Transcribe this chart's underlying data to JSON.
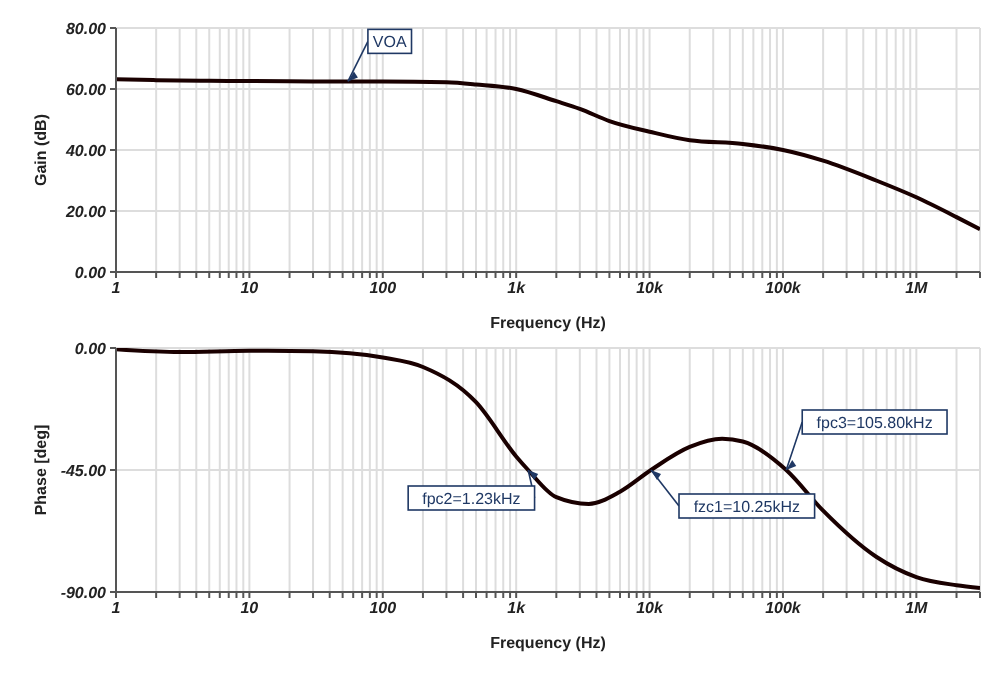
{
  "chart_data": [
    {
      "type": "line",
      "xlabel": "Frequency (Hz)",
      "ylabel": "Gain (dB)",
      "log": "x",
      "grid": true,
      "x": [
        1,
        2,
        5,
        10,
        30,
        100,
        300,
        500,
        1000,
        2000,
        3000,
        5000,
        10000,
        20000,
        50000,
        100000,
        200000,
        500000,
        1000000,
        2000000,
        3000000
      ],
      "series": [
        {
          "name": "VOA",
          "color": "#1a0000",
          "values": [
            63.2,
            62.9,
            62.7,
            62.6,
            62.5,
            62.5,
            62.2,
            61.5,
            60,
            56,
            53.5,
            49.5,
            46,
            43.2,
            42,
            40,
            36.5,
            30,
            24.5,
            18,
            14
          ]
        }
      ],
      "xlim": [
        1,
        3000000
      ],
      "xticks": [
        {
          "value": 1,
          "label": "1"
        },
        {
          "value": 2,
          "label": null
        },
        {
          "value": 3,
          "label": null
        },
        {
          "value": 4,
          "label": null
        },
        {
          "value": 5,
          "label": null
        },
        {
          "value": 6,
          "label": null
        },
        {
          "value": 7,
          "label": null
        },
        {
          "value": 8,
          "label": null
        },
        {
          "value": 9,
          "label": null
        },
        {
          "value": 10,
          "label": "10"
        },
        {
          "value": 20,
          "label": null
        },
        {
          "value": 30,
          "label": null
        },
        {
          "value": 40,
          "label": null
        },
        {
          "value": 50,
          "label": null
        },
        {
          "value": 60,
          "label": null
        },
        {
          "value": 70,
          "label": null
        },
        {
          "value": 80,
          "label": null
        },
        {
          "value": 90,
          "label": null
        },
        {
          "value": 100,
          "label": "100"
        },
        {
          "value": 200,
          "label": null
        },
        {
          "value": 300,
          "label": null
        },
        {
          "value": 400,
          "label": null
        },
        {
          "value": 500,
          "label": null
        },
        {
          "value": 600,
          "label": null
        },
        {
          "value": 700,
          "label": null
        },
        {
          "value": 800,
          "label": null
        },
        {
          "value": 900,
          "label": null
        },
        {
          "value": 1000,
          "label": "1k"
        },
        {
          "value": 2000,
          "label": null
        },
        {
          "value": 3000,
          "label": null
        },
        {
          "value": 4000,
          "label": null
        },
        {
          "value": 5000,
          "label": null
        },
        {
          "value": 6000,
          "label": null
        },
        {
          "value": 7000,
          "label": null
        },
        {
          "value": 8000,
          "label": null
        },
        {
          "value": 9000,
          "label": null
        },
        {
          "value": 10000,
          "label": "10k"
        },
        {
          "value": 20000,
          "label": null
        },
        {
          "value": 30000,
          "label": null
        },
        {
          "value": 40000,
          "label": null
        },
        {
          "value": 50000,
          "label": null
        },
        {
          "value": 60000,
          "label": null
        },
        {
          "value": 70000,
          "label": null
        },
        {
          "value": 80000,
          "label": null
        },
        {
          "value": 90000,
          "label": null
        },
        {
          "value": 100000,
          "label": "100k"
        },
        {
          "value": 200000,
          "label": null
        },
        {
          "value": 300000,
          "label": null
        },
        {
          "value": 400000,
          "label": null
        },
        {
          "value": 500000,
          "label": null
        },
        {
          "value": 600000,
          "label": null
        },
        {
          "value": 700000,
          "label": null
        },
        {
          "value": 800000,
          "label": null
        },
        {
          "value": 900000,
          "label": null
        },
        {
          "value": 1000000,
          "label": "1M"
        },
        {
          "value": 2000000,
          "label": null
        },
        {
          "value": 3000000,
          "label": null
        }
      ],
      "ylim": [
        0,
        80
      ],
      "yticks": [
        {
          "value": 0,
          "label": "0.00"
        },
        {
          "value": 20,
          "label": "20.00"
        },
        {
          "value": 40,
          "label": "40.00"
        },
        {
          "value": 60,
          "label": "60.00"
        },
        {
          "value": 80,
          "label": "80.00"
        }
      ]
    },
    {
      "type": "line",
      "xlabel": "Frequency (Hz)",
      "ylabel": "Phase [deg]",
      "log": "x",
      "grid": true,
      "x": [
        1,
        3,
        10,
        30,
        100,
        200,
        500,
        1000,
        1230,
        2000,
        3500,
        6000,
        10250,
        20000,
        35000,
        50000,
        105800,
        200000,
        500000,
        1000000,
        2000000,
        3000000
      ],
      "color": "#1a0000",
      "values": [
        -0.5,
        -1.5,
        -1,
        -1.2,
        -3.5,
        -7,
        -20,
        -40,
        -45,
        -55,
        -57.5,
        -53,
        -45,
        -36.5,
        -33.5,
        -34.5,
        -45,
        -60,
        -77,
        -84.5,
        -87.5,
        -88.5
      ],
      "xlim": [
        1,
        3000000
      ],
      "xticks": [
        {
          "value": 1,
          "label": "1"
        },
        {
          "value": 2,
          "label": null
        },
        {
          "value": 3,
          "label": null
        },
        {
          "value": 4,
          "label": null
        },
        {
          "value": 5,
          "label": null
        },
        {
          "value": 6,
          "label": null
        },
        {
          "value": 7,
          "label": null
        },
        {
          "value": 8,
          "label": null
        },
        {
          "value": 9,
          "label": null
        },
        {
          "value": 10,
          "label": "10"
        },
        {
          "value": 20,
          "label": null
        },
        {
          "value": 30,
          "label": null
        },
        {
          "value": 40,
          "label": null
        },
        {
          "value": 50,
          "label": null
        },
        {
          "value": 60,
          "label": null
        },
        {
          "value": 70,
          "label": null
        },
        {
          "value": 80,
          "label": null
        },
        {
          "value": 90,
          "label": null
        },
        {
          "value": 100,
          "label": "100"
        },
        {
          "value": 200,
          "label": null
        },
        {
          "value": 300,
          "label": null
        },
        {
          "value": 400,
          "label": null
        },
        {
          "value": 500,
          "label": null
        },
        {
          "value": 600,
          "label": null
        },
        {
          "value": 700,
          "label": null
        },
        {
          "value": 800,
          "label": null
        },
        {
          "value": 900,
          "label": null
        },
        {
          "value": 1000,
          "label": "1k"
        },
        {
          "value": 2000,
          "label": null
        },
        {
          "value": 3000,
          "label": null
        },
        {
          "value": 4000,
          "label": null
        },
        {
          "value": 5000,
          "label": null
        },
        {
          "value": 6000,
          "label": null
        },
        {
          "value": 7000,
          "label": null
        },
        {
          "value": 8000,
          "label": null
        },
        {
          "value": 9000,
          "label": null
        },
        {
          "value": 10000,
          "label": "10k"
        },
        {
          "value": 20000,
          "label": null
        },
        {
          "value": 30000,
          "label": null
        },
        {
          "value": 40000,
          "label": null
        },
        {
          "value": 50000,
          "label": null
        },
        {
          "value": 60000,
          "label": null
        },
        {
          "value": 70000,
          "label": null
        },
        {
          "value": 80000,
          "label": null
        },
        {
          "value": 90000,
          "label": null
        },
        {
          "value": 100000,
          "label": "100k"
        },
        {
          "value": 200000,
          "label": null
        },
        {
          "value": 300000,
          "label": null
        },
        {
          "value": 400000,
          "label": null
        },
        {
          "value": 500000,
          "label": null
        },
        {
          "value": 600000,
          "label": null
        },
        {
          "value": 700000,
          "label": null
        },
        {
          "value": 800000,
          "label": null
        },
        {
          "value": 900000,
          "label": null
        },
        {
          "value": 1000000,
          "label": "1M"
        },
        {
          "value": 2000000,
          "label": null
        },
        {
          "value": 3000000,
          "label": null
        }
      ],
      "ylim": [
        -90,
        0
      ],
      "yticks": [
        {
          "value": -90,
          "label": "-90.00"
        },
        {
          "value": -45,
          "label": "-45.00"
        },
        {
          "value": 0,
          "label": "0.00"
        }
      ],
      "annotations": [
        {
          "text": "fpc2=1.23kHz",
          "x": 1230,
          "y": -45
        },
        {
          "text": "fzc1=10.25kHz",
          "x": 10250,
          "y": -45
        },
        {
          "text": "fpc3=105.80kHz",
          "x": 105800,
          "y": -45
        }
      ]
    }
  ]
}
